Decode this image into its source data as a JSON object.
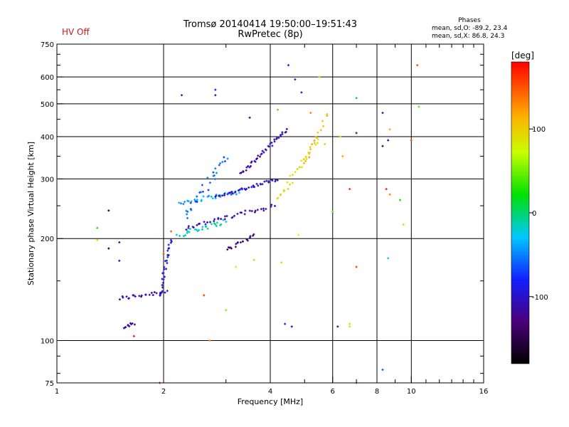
{
  "status_label": "HV Off",
  "title_line1": "Tromsø 20140414 19:50:00–19:51:43",
  "title_line2": "RwPretec (8p)",
  "phase_box": {
    "heading": "Phases",
    "line_o": "mean, sd,O: -89.2, 23.4",
    "line_x": "mean, sd,X:  86.8, 24.3"
  },
  "colorbar": {
    "unit": "[deg]",
    "ticks": [
      {
        "value": 100,
        "label": "100"
      },
      {
        "value": 0,
        "label": "0"
      },
      {
        "value": -100,
        "label": "-100"
      }
    ],
    "range": [
      -180,
      180
    ]
  },
  "chart_data": {
    "type": "scatter",
    "xlabel": "Frequency [MHz]",
    "ylabel": "Stationary phase Virtual Height [km]",
    "xscale": "log",
    "yscale": "log",
    "xlim": [
      1,
      16
    ],
    "ylim": [
      75,
      750
    ],
    "x_ticks": [
      {
        "value": 1,
        "label": "1"
      },
      {
        "value": 2,
        "label": "2"
      },
      {
        "value": 4,
        "label": "4"
      },
      {
        "value": 6,
        "label": "6"
      },
      {
        "value": 8,
        "label": "8"
      },
      {
        "value": 10,
        "label": "10"
      },
      {
        "value": 16,
        "label": "16"
      }
    ],
    "y_ticks": [
      {
        "value": 75,
        "label": "75"
      },
      {
        "value": 100,
        "label": "100"
      },
      {
        "value": 200,
        "label": "200"
      },
      {
        "value": 300,
        "label": "300"
      },
      {
        "value": 400,
        "label": "400"
      },
      {
        "value": 500,
        "label": "500"
      },
      {
        "value": 600,
        "label": "600"
      },
      {
        "value": 750,
        "label": "750"
      }
    ],
    "x_gridlines": [
      2,
      4,
      6,
      8,
      10
    ],
    "x_minor": [
      3,
      5,
      7,
      9,
      11,
      12,
      13,
      14,
      15
    ],
    "y_gridlines": [
      100,
      200,
      300,
      400,
      500,
      600
    ],
    "y_minor": [
      80,
      90,
      150,
      250,
      350,
      450,
      550,
      650,
      700
    ],
    "color_variable": "phase (deg)",
    "traces": [
      {
        "name": "low layer",
        "x0": 1.5,
        "y0": 133,
        "x1": 2.05,
        "y1": 140,
        "phase": -115,
        "n": 24,
        "jitter": 0.02
      },
      {
        "name": "rise",
        "x0": 1.95,
        "y0": 135,
        "x1": 2.1,
        "y1": 200,
        "phase": -95,
        "n": 28,
        "jitter": 0.02
      },
      {
        "name": "lower trace low",
        "x0": 1.55,
        "y0": 110,
        "x1": 1.65,
        "y1": 112,
        "phase": -120,
        "n": 10,
        "jitter": 0.015
      },
      {
        "name": "E branch",
        "x0": 2.2,
        "y0": 255,
        "x1": 3.3,
        "y1": 275,
        "phase": -40,
        "n": 30,
        "jitter": 0.02
      },
      {
        "name": "F1 O upper",
        "x0": 2.8,
        "y0": 265,
        "x1": 4.2,
        "y1": 300,
        "phase": -100,
        "n": 40,
        "jitter": 0.015
      },
      {
        "name": "F1 O lower",
        "x0": 2.3,
        "y0": 215,
        "x1": 4.1,
        "y1": 250,
        "phase": -110,
        "n": 40,
        "jitter": 0.02
      },
      {
        "name": "F2 rise",
        "x0": 3.3,
        "y0": 310,
        "x1": 4.45,
        "y1": 420,
        "phase": -115,
        "n": 40,
        "jitter": 0.015
      },
      {
        "name": "cyan cluster",
        "x0": 2.2,
        "y0": 205,
        "x1": 3.0,
        "y1": 225,
        "phase": -20,
        "n": 26,
        "jitter": 0.025
      },
      {
        "name": "X branch",
        "x0": 4.2,
        "y0": 260,
        "x1": 5.5,
        "y1": 400,
        "phase": 95,
        "n": 30,
        "jitter": 0.03
      },
      {
        "name": "X upper",
        "x0": 5.0,
        "y0": 330,
        "x1": 5.8,
        "y1": 470,
        "phase": 110,
        "n": 14,
        "jitter": 0.02
      },
      {
        "name": "mid spread",
        "x0": 2.3,
        "y0": 230,
        "x1": 3.0,
        "y1": 350,
        "phase": -60,
        "n": 30,
        "jitter": 0.04
      },
      {
        "name": "deep O",
        "x0": 3.0,
        "y0": 185,
        "x1": 3.6,
        "y1": 205,
        "phase": -130,
        "n": 18,
        "jitter": 0.02
      }
    ],
    "scatter_points": [
      {
        "x": 2.25,
        "y": 530,
        "phase": -100
      },
      {
        "x": 2.8,
        "y": 550,
        "phase": -90
      },
      {
        "x": 2.8,
        "y": 530,
        "phase": -110
      },
      {
        "x": 3.5,
        "y": 455,
        "phase": -120
      },
      {
        "x": 4.5,
        "y": 650,
        "phase": -80
      },
      {
        "x": 4.7,
        "y": 590,
        "phase": -100
      },
      {
        "x": 4.9,
        "y": 540,
        "phase": -110
      },
      {
        "x": 5.5,
        "y": 600,
        "phase": 110
      },
      {
        "x": 7.0,
        "y": 520,
        "phase": -40
      },
      {
        "x": 7.0,
        "y": 410,
        "phase": -120
      },
      {
        "x": 8.3,
        "y": 470,
        "phase": -100
      },
      {
        "x": 8.3,
        "y": 375,
        "phase": -130
      },
      {
        "x": 8.6,
        "y": 390,
        "phase": -110
      },
      {
        "x": 8.7,
        "y": 420,
        "phase": 120
      },
      {
        "x": 10.4,
        "y": 650,
        "phase": 150
      },
      {
        "x": 10.5,
        "y": 490,
        "phase": 40
      },
      {
        "x": 10.0,
        "y": 390,
        "phase": 150
      },
      {
        "x": 6.3,
        "y": 400,
        "phase": 110
      },
      {
        "x": 6.4,
        "y": 350,
        "phase": 120
      },
      {
        "x": 6.7,
        "y": 280,
        "phase": 160
      },
      {
        "x": 8.5,
        "y": 280,
        "phase": 170
      },
      {
        "x": 8.7,
        "y": 270,
        "phase": 130
      },
      {
        "x": 9.3,
        "y": 260,
        "phase": 20
      },
      {
        "x": 9.5,
        "y": 220,
        "phase": 60
      },
      {
        "x": 6.0,
        "y": 240,
        "phase": 40
      },
      {
        "x": 8.6,
        "y": 175,
        "phase": -30
      },
      {
        "x": 7.0,
        "y": 165,
        "phase": 160
      },
      {
        "x": 6.2,
        "y": 110,
        "phase": -120
      },
      {
        "x": 6.7,
        "y": 110,
        "phase": 80
      },
      {
        "x": 6.7,
        "y": 112,
        "phase": 60
      },
      {
        "x": 4.4,
        "y": 112,
        "phase": -90
      },
      {
        "x": 4.6,
        "y": 110,
        "phase": -100
      },
      {
        "x": 4.3,
        "y": 170,
        "phase": 90
      },
      {
        "x": 4.8,
        "y": 205,
        "phase": 70
      },
      {
        "x": 8.3,
        "y": 82,
        "phase": -60
      },
      {
        "x": 7.0,
        "y": 75,
        "phase": 150
      },
      {
        "x": 1.3,
        "y": 215,
        "phase": 30
      },
      {
        "x": 1.3,
        "y": 198,
        "phase": 90
      },
      {
        "x": 1.4,
        "y": 242,
        "phase": -150
      },
      {
        "x": 1.4,
        "y": 187,
        "phase": -160
      },
      {
        "x": 1.5,
        "y": 195,
        "phase": -120
      },
      {
        "x": 1.5,
        "y": 172,
        "phase": -110
      },
      {
        "x": 1.65,
        "y": 103,
        "phase": 170
      },
      {
        "x": 2.6,
        "y": 136,
        "phase": 160
      },
      {
        "x": 2.7,
        "y": 100,
        "phase": 130
      },
      {
        "x": 3.0,
        "y": 123,
        "phase": 50
      },
      {
        "x": 3.6,
        "y": 173,
        "phase": 100
      },
      {
        "x": 3.2,
        "y": 165,
        "phase": 80
      },
      {
        "x": 1.95,
        "y": 75,
        "phase": 170
      },
      {
        "x": 2.1,
        "y": 210,
        "phase": 150
      },
      {
        "x": 2.0,
        "y": 180,
        "phase": 160
      },
      {
        "x": 5.7,
        "y": 380,
        "phase": 90
      },
      {
        "x": 5.2,
        "y": 470,
        "phase": 130
      },
      {
        "x": 4.2,
        "y": 480,
        "phase": 130
      }
    ]
  }
}
